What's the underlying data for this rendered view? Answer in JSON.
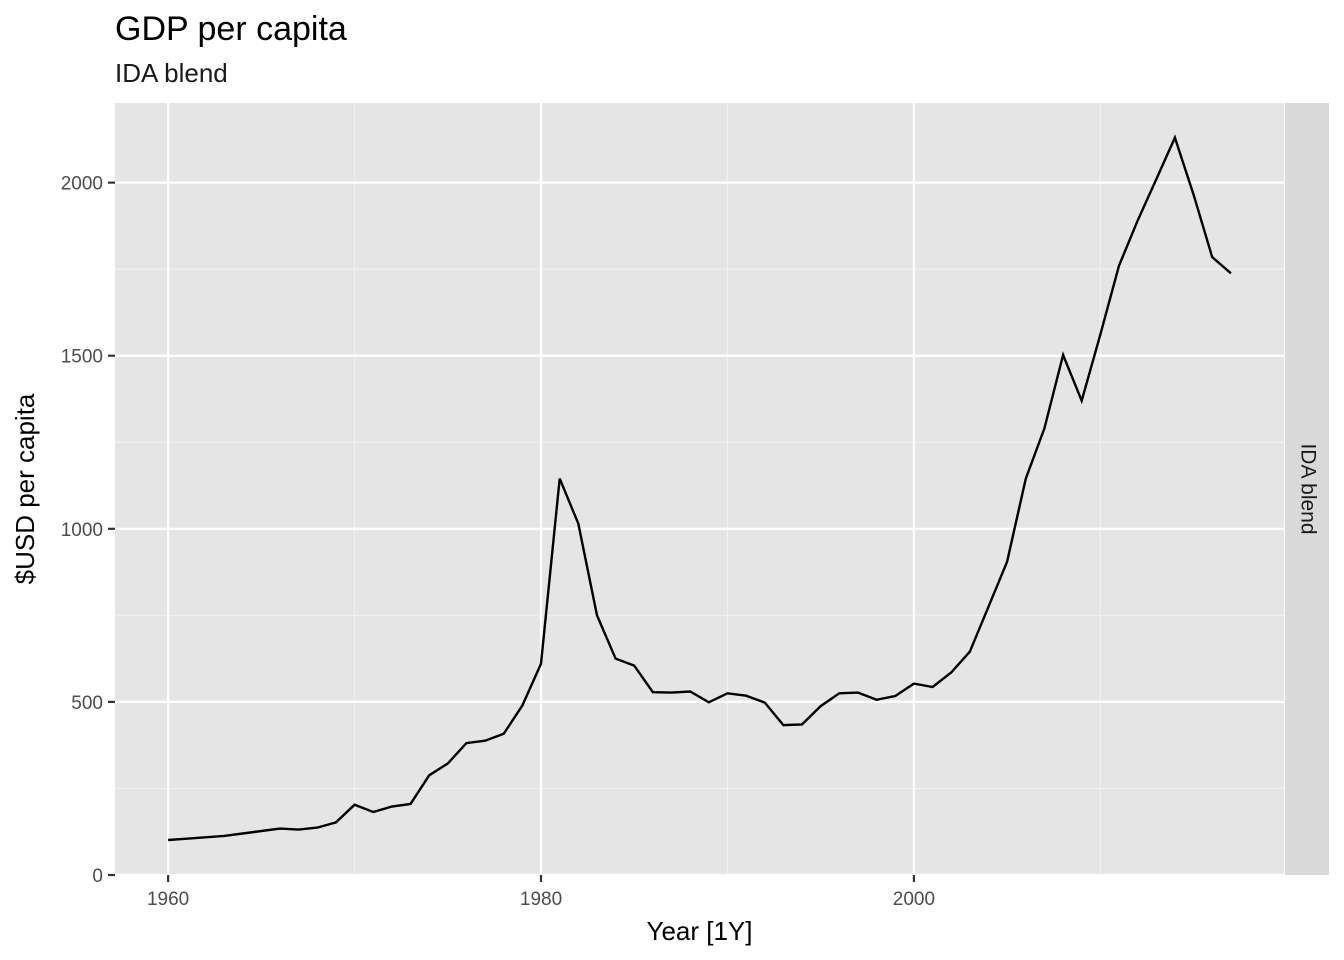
{
  "chart_data": {
    "type": "line",
    "title": "GDP per capita",
    "subtitle": "IDA blend",
    "xlabel": "Year [1Y]",
    "ylabel": "$USD per capita",
    "facet_label": "IDA blend",
    "xlim": [
      1957.15,
      2019.85
    ],
    "ylim": [
      0,
      2230
    ],
    "x_ticks": [
      1960,
      1980,
      2000
    ],
    "y_ticks": [
      0,
      500,
      1000,
      1500,
      2000
    ],
    "grid": true,
    "panel_background": "#e5e5e5",
    "strip_background": "#d9d9d9",
    "line_color": "#000000",
    "series": [
      {
        "x": [
          1960,
          1961,
          1962,
          1963,
          1964,
          1965,
          1966,
          1967,
          1968,
          1969,
          1970,
          1971,
          1972,
          1973,
          1974,
          1975,
          1976,
          1977,
          1978,
          1979,
          1980,
          1981,
          1982,
          1983,
          1984,
          1985,
          1986,
          1987,
          1988,
          1989,
          1990,
          1991,
          1992,
          1993,
          1994,
          1995,
          1996,
          1997,
          1998,
          1999,
          2000,
          2001,
          2002,
          2003,
          2004,
          2005,
          2006,
          2007,
          2008,
          2009,
          2010,
          2011,
          2012,
          2013,
          2014,
          2015,
          2016,
          2017
        ],
        "y": [
          101,
          105,
          109,
          113,
          120,
          127,
          134,
          131,
          137,
          152,
          203,
          182,
          198,
          205,
          288,
          322,
          381,
          388,
          408,
          490,
          610,
          1145,
          1015,
          750,
          625,
          605,
          528,
          527,
          530,
          499,
          525,
          518,
          498,
          433,
          435,
          488,
          525,
          527,
          506,
          517,
          553,
          543,
          585,
          645,
          775,
          905,
          1145,
          1290,
          1502,
          1370,
          1562,
          1760,
          1890,
          2010,
          2130,
          1965,
          1785,
          1738
        ]
      }
    ]
  }
}
